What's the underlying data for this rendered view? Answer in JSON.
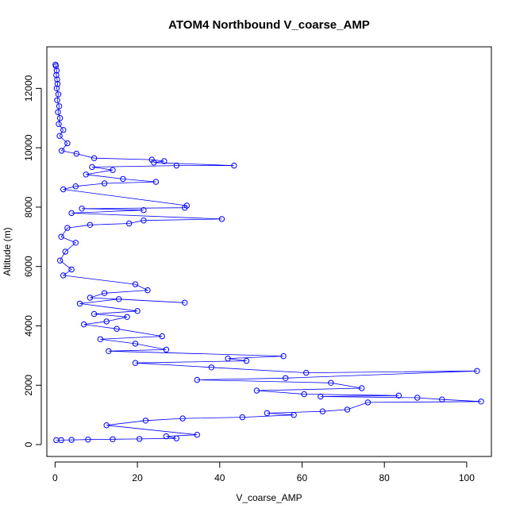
{
  "chart_data": {
    "type": "line",
    "title": "ATOM4 Northbound V_coarse_AMP",
    "xlabel": "V_coarse_AMP",
    "ylabel": "Altitude (m)",
    "xlim": [
      -2,
      106
    ],
    "ylim": [
      -400,
      13400
    ],
    "x_ticks": [
      0,
      20,
      40,
      60,
      80,
      100
    ],
    "y_ticks": [
      0,
      2000,
      4000,
      6000,
      8000,
      10000,
      12000
    ],
    "grid": false,
    "legend": "none",
    "color": "#0000ff",
    "marker": "open-circle",
    "series": [
      {
        "points": [
          [
            0.1,
            12800
          ],
          [
            0.2,
            12750
          ],
          [
            0.4,
            12600
          ],
          [
            0.3,
            12450
          ],
          [
            0.5,
            12300
          ],
          [
            0.6,
            12150
          ],
          [
            0.4,
            12000
          ],
          [
            0.8,
            11800
          ],
          [
            0.5,
            11600
          ],
          [
            1.0,
            11400
          ],
          [
            0.7,
            11200
          ],
          [
            1.2,
            11000
          ],
          [
            0.9,
            10800
          ],
          [
            2.0,
            10600
          ],
          [
            1.1,
            10400
          ],
          [
            3.0,
            10150
          ],
          [
            1.6,
            9900
          ],
          [
            5.2,
            9800
          ],
          [
            9.5,
            9650
          ],
          [
            23.5,
            9600
          ],
          [
            26.5,
            9550
          ],
          [
            24.0,
            9500
          ],
          [
            43.5,
            9400
          ],
          [
            29.5,
            9400
          ],
          [
            9.0,
            9350
          ],
          [
            14.0,
            9250
          ],
          [
            7.5,
            9100
          ],
          [
            16.5,
            8950
          ],
          [
            24.5,
            8850
          ],
          [
            12.0,
            8800
          ],
          [
            5.0,
            8700
          ],
          [
            2.0,
            8600
          ],
          [
            32.0,
            8050
          ],
          [
            31.5,
            7980
          ],
          [
            6.5,
            7950
          ],
          [
            21.5,
            7900
          ],
          [
            4.0,
            7800
          ],
          [
            40.5,
            7600
          ],
          [
            21.5,
            7550
          ],
          [
            18.0,
            7450
          ],
          [
            8.5,
            7400
          ],
          [
            3.0,
            7300
          ],
          [
            1.5,
            7000
          ],
          [
            5.0,
            6800
          ],
          [
            2.5,
            6500
          ],
          [
            1.2,
            6200
          ],
          [
            4.0,
            5900
          ],
          [
            2.0,
            5700
          ],
          [
            19.5,
            5400
          ],
          [
            22.5,
            5200
          ],
          [
            12.0,
            5100
          ],
          [
            8.5,
            4950
          ],
          [
            31.5,
            4780
          ],
          [
            15.5,
            4900
          ],
          [
            6.0,
            4750
          ],
          [
            20.0,
            4500
          ],
          [
            9.5,
            4400
          ],
          [
            17.5,
            4300
          ],
          [
            12.5,
            4150
          ],
          [
            7.0,
            4050
          ],
          [
            15.0,
            3900
          ],
          [
            26.0,
            3650
          ],
          [
            11.0,
            3550
          ],
          [
            19.5,
            3400
          ],
          [
            27.0,
            3200
          ],
          [
            13.0,
            3150
          ],
          [
            55.5,
            2980
          ],
          [
            42.0,
            2900
          ],
          [
            46.5,
            2820
          ],
          [
            19.5,
            2750
          ],
          [
            38.0,
            2600
          ],
          [
            61.0,
            2420
          ],
          [
            102.5,
            2480
          ],
          [
            56.0,
            2240
          ],
          [
            34.5,
            2180
          ],
          [
            67.0,
            2080
          ],
          [
            74.5,
            1900
          ],
          [
            49.0,
            1820
          ],
          [
            60.5,
            1700
          ],
          [
            83.5,
            1650
          ],
          [
            64.5,
            1620
          ],
          [
            88.0,
            1580
          ],
          [
            94.0,
            1520
          ],
          [
            103.5,
            1450
          ],
          [
            76.0,
            1420
          ],
          [
            71.0,
            1180
          ],
          [
            65.0,
            1120
          ],
          [
            51.5,
            1060
          ],
          [
            58.0,
            1000
          ],
          [
            45.5,
            920
          ],
          [
            31.0,
            880
          ],
          [
            22.0,
            810
          ],
          [
            12.5,
            650
          ],
          [
            34.5,
            330
          ],
          [
            27.0,
            280
          ],
          [
            29.5,
            210
          ],
          [
            20.5,
            190
          ],
          [
            14.0,
            180
          ],
          [
            8.0,
            170
          ],
          [
            4.0,
            160
          ],
          [
            1.5,
            150
          ],
          [
            0.3,
            150
          ]
        ]
      }
    ]
  }
}
